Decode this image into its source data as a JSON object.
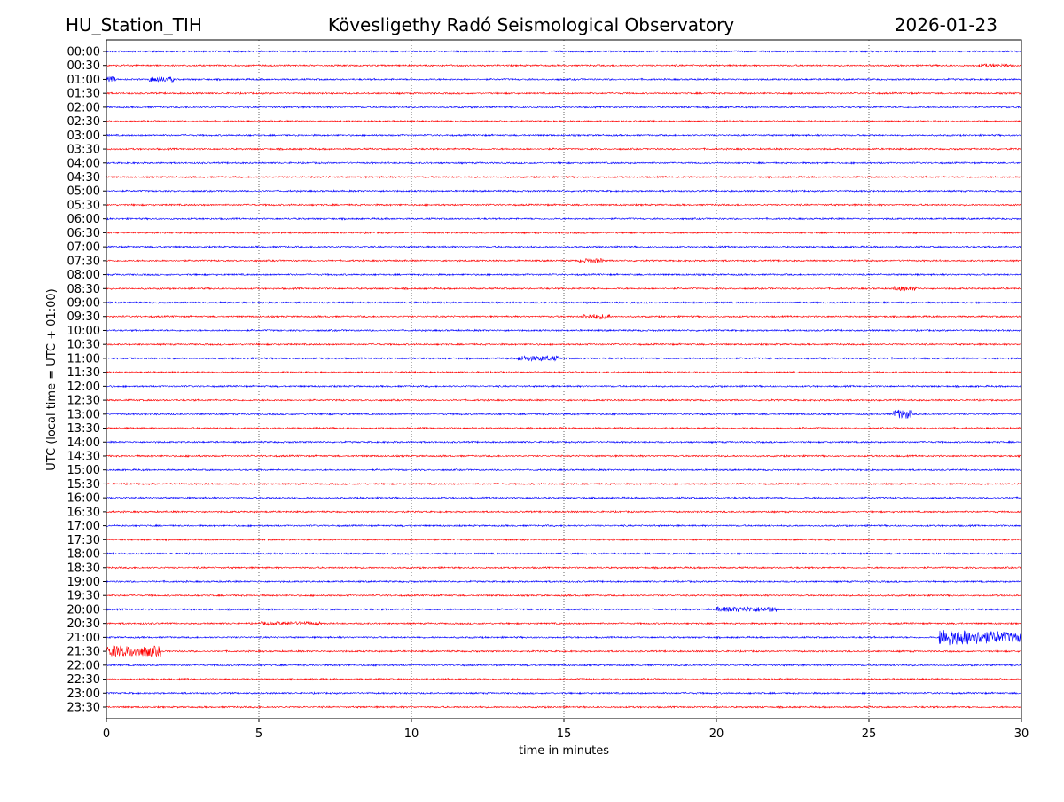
{
  "header": {
    "station": "HU_Station_TIH",
    "observatory": "Kövesligethy Radó Seismological Observatory",
    "date": "2026-01-23"
  },
  "chart_data": {
    "type": "line",
    "title": "Kövesligethy Radó Seismological Observatory",
    "xlabel": "time in minutes",
    "ylabel": "UTC (local time = UTC + 01:00)",
    "xlim": [
      0,
      30
    ],
    "xticks": [
      "0",
      "5",
      "10",
      "15",
      "20",
      "25",
      "30"
    ],
    "grid": "vertical dotted at 5-minute intervals",
    "colors": [
      "#0000ff",
      "#ff0000"
    ],
    "rows": [
      "00:00",
      "00:30",
      "01:00",
      "01:30",
      "02:00",
      "02:30",
      "03:00",
      "03:30",
      "04:00",
      "04:30",
      "05:00",
      "05:30",
      "06:00",
      "06:30",
      "07:00",
      "07:30",
      "08:00",
      "08:30",
      "09:00",
      "09:30",
      "10:00",
      "10:30",
      "11:00",
      "11:30",
      "12:00",
      "12:30",
      "13:00",
      "13:30",
      "14:00",
      "14:30",
      "15:00",
      "15:30",
      "16:00",
      "16:30",
      "17:00",
      "17:30",
      "18:00",
      "18:30",
      "19:00",
      "19:30",
      "20:00",
      "20:30",
      "21:00",
      "21:30",
      "22:00",
      "22:30",
      "23:00",
      "23:30"
    ],
    "events": [
      {
        "row": "00:30",
        "start_min": 28.6,
        "end_min": 29.6,
        "amplitude": 2
      },
      {
        "row": "01:00",
        "start_min": 0,
        "end_min": 0.3,
        "amplitude": 3
      },
      {
        "row": "01:00",
        "start_min": 1.4,
        "end_min": 2.2,
        "amplitude": 3
      },
      {
        "row": "07:30",
        "start_min": 15.5,
        "end_min": 16.3,
        "amplitude": 2.5
      },
      {
        "row": "08:30",
        "start_min": 25.8,
        "end_min": 26.6,
        "amplitude": 2.5
      },
      {
        "row": "09:30",
        "start_min": 15.6,
        "end_min": 16.5,
        "amplitude": 3
      },
      {
        "row": "11:00",
        "start_min": 13.5,
        "end_min": 14.8,
        "amplitude": 3
      },
      {
        "row": "13:00",
        "start_min": 25.8,
        "end_min": 26.4,
        "amplitude": 5
      },
      {
        "row": "20:00",
        "start_min": 20.0,
        "end_min": 22.0,
        "amplitude": 3
      },
      {
        "row": "20:30",
        "start_min": 5.0,
        "end_min": 7.0,
        "amplitude": 2
      },
      {
        "row": "21:00",
        "start_min": 27.3,
        "end_min": 30.0,
        "amplitude": 10
      },
      {
        "row": "21:30",
        "start_min": 0,
        "end_min": 1.8,
        "amplitude": 6
      }
    ]
  }
}
